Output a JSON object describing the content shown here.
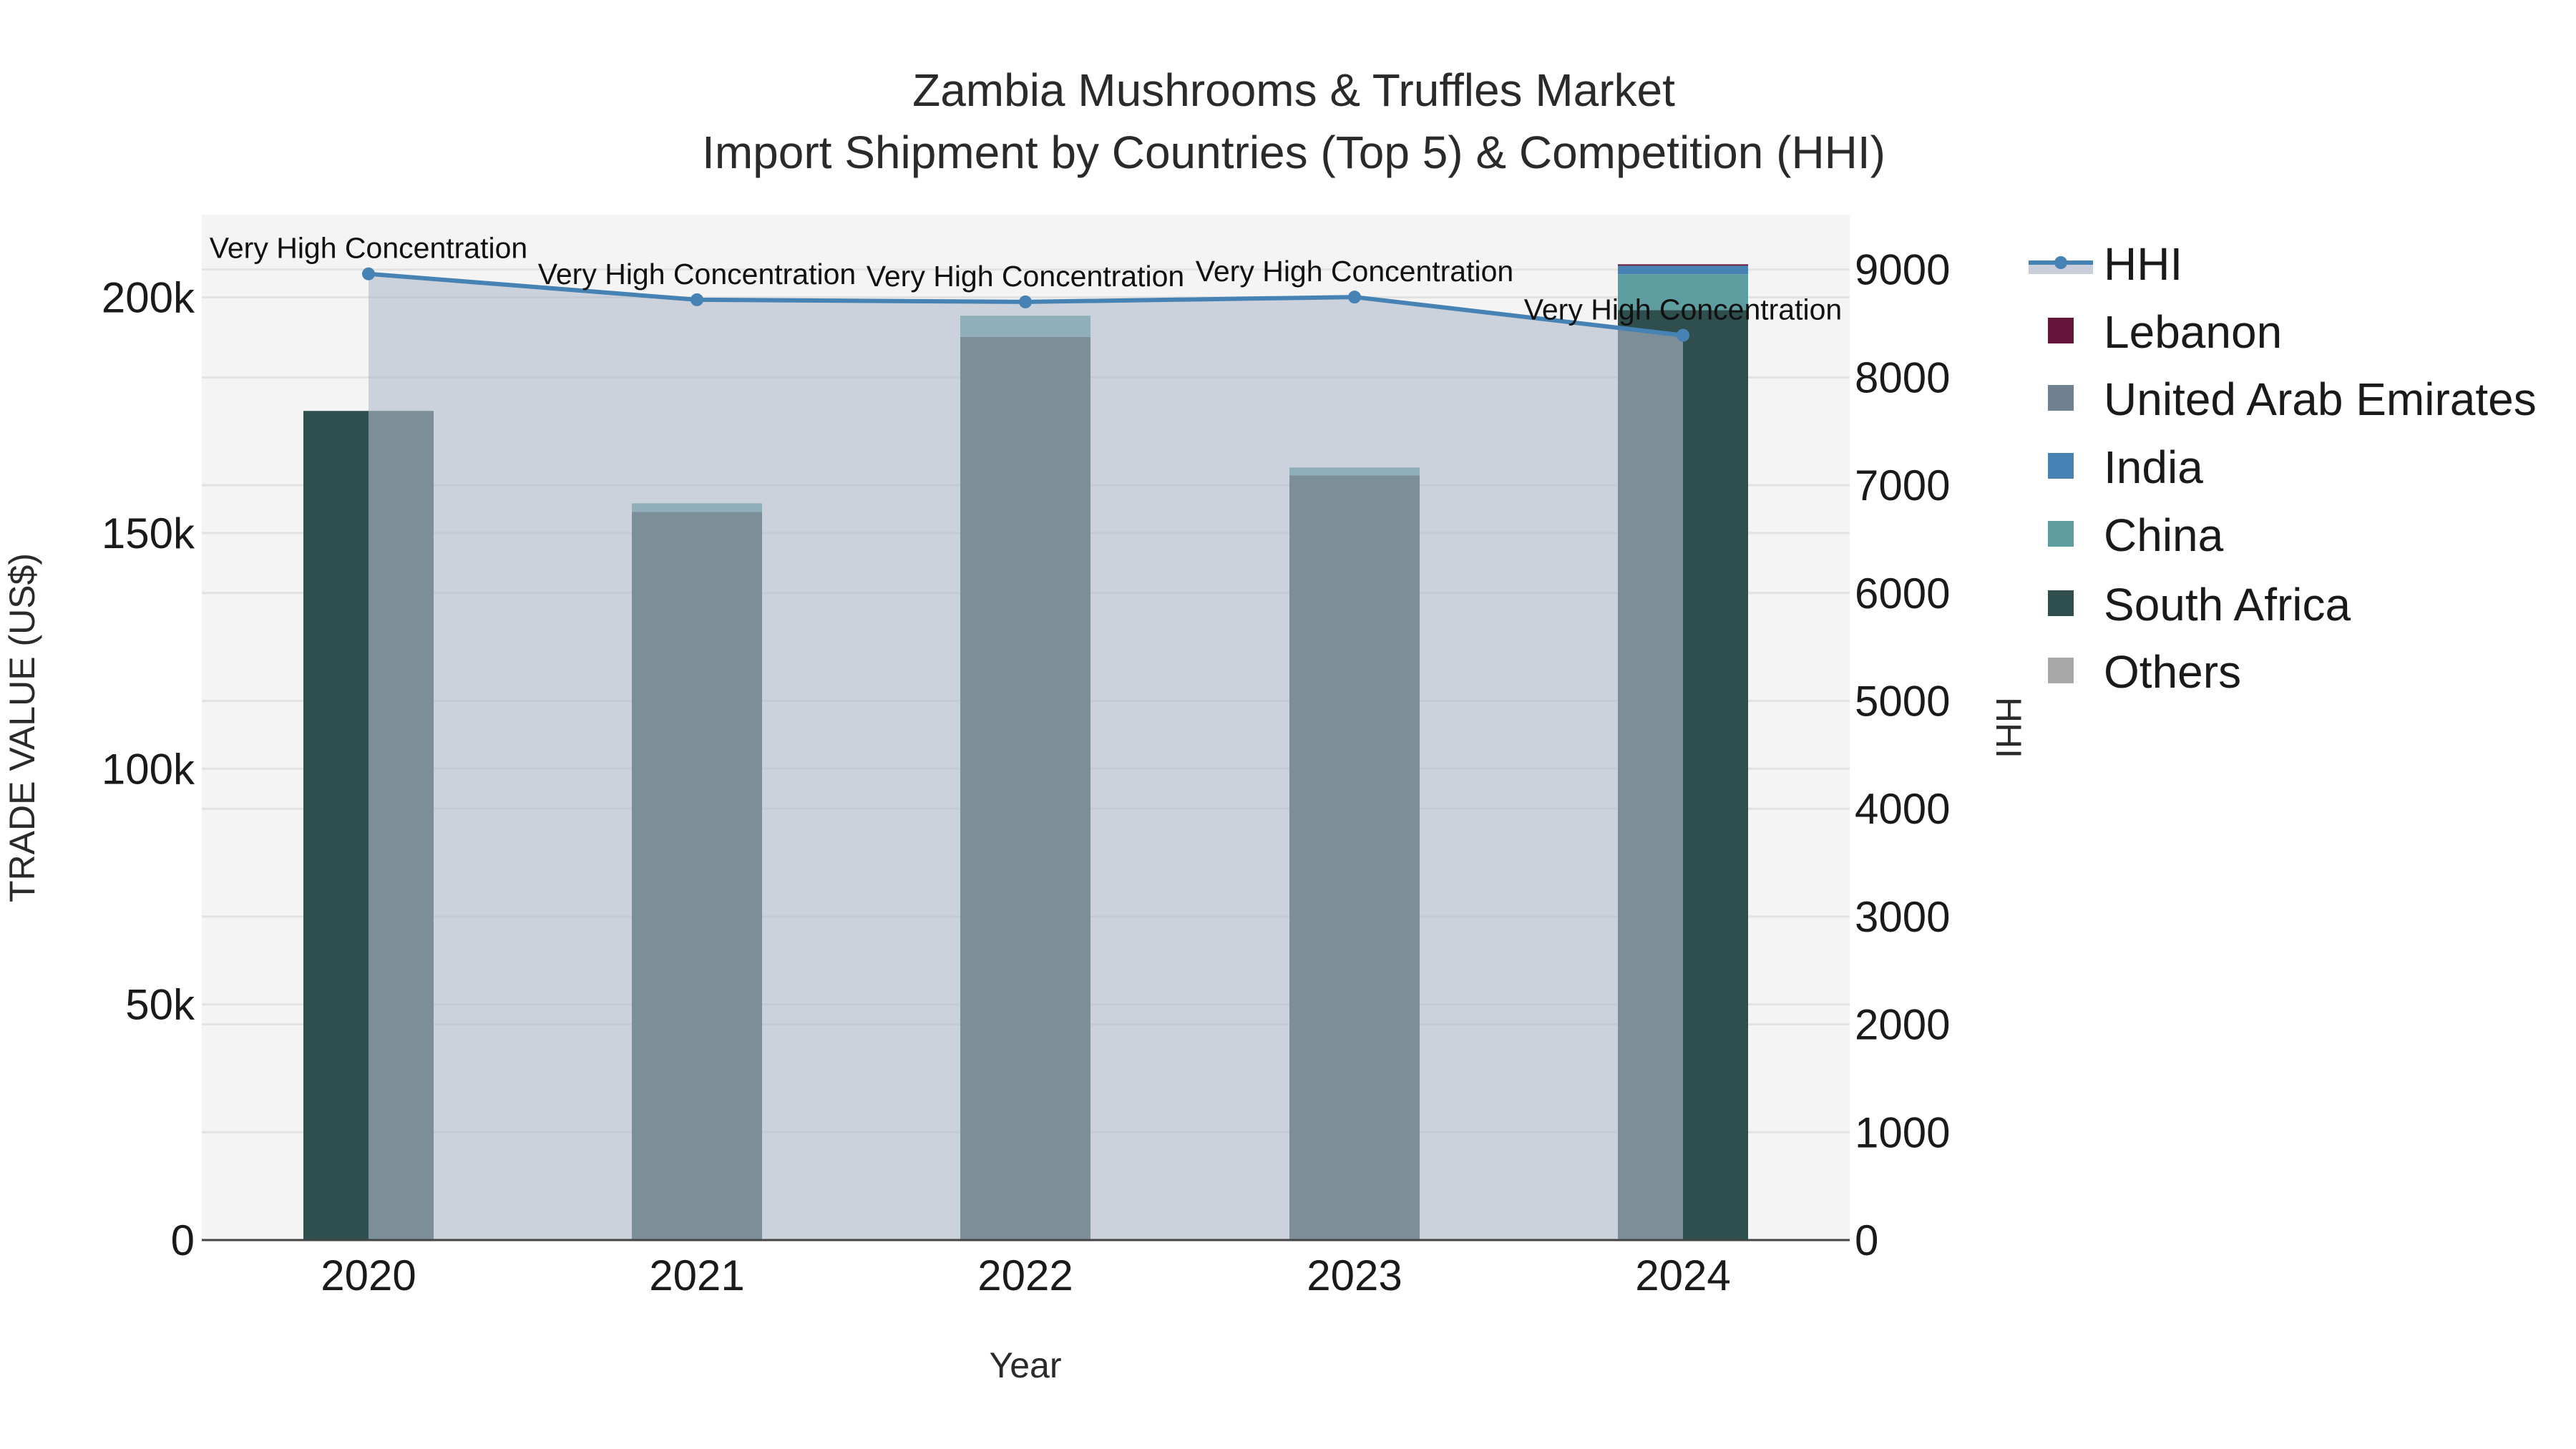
{
  "title": {
    "line1": "Zambia Mushrooms & Truffles Market",
    "line2": "Import Shipment by Countries (Top 5) & Competition (HHI)"
  },
  "axes": {
    "x_title": "Year",
    "y_left_title": "TRADE VALUE (US$)",
    "y_right_title": "HHI",
    "x_ticks": [
      "2020",
      "2021",
      "2022",
      "2023",
      "2024"
    ],
    "y_left_ticks": [
      "0",
      "50k",
      "100k",
      "150k",
      "200k"
    ],
    "y_right_ticks": [
      "0",
      "1000",
      "2000",
      "3000",
      "4000",
      "5000",
      "6000",
      "7000",
      "8000",
      "9000"
    ]
  },
  "legend": {
    "items": [
      {
        "label": "HHI",
        "color": "#4682b4",
        "kind": "line"
      },
      {
        "label": "Lebanon",
        "color": "#641539",
        "kind": "box"
      },
      {
        "label": "United Arab Emirates",
        "color": "#708090",
        "kind": "box"
      },
      {
        "label": "India",
        "color": "#4682b4",
        "kind": "box"
      },
      {
        "label": "China",
        "color": "#5f9ea0",
        "kind": "box"
      },
      {
        "label": "South Africa",
        "color": "#2f4f4f",
        "kind": "box"
      },
      {
        "label": "Others",
        "color": "#a9a9a9",
        "kind": "box"
      }
    ]
  },
  "annotations": [
    "Very High Concentration",
    "Very High Concentration",
    "Very High Concentration",
    "Very High Concentration",
    "Very High Concentration"
  ],
  "colors": {
    "plot_bg": "#f4f4f4",
    "hhi_line": "#4682b4",
    "hhi_fill": "rgba(176,186,204,0.6)"
  },
  "chart_data": {
    "type": "bar",
    "title": "Zambia Mushrooms & Truffles Market — Import Shipment by Countries (Top 5) & Competition (HHI)",
    "xlabel": "Year",
    "ylabel": "TRADE VALUE (US$)",
    "y2label": "HHI",
    "categories": [
      "2020",
      "2021",
      "2022",
      "2023",
      "2024"
    ],
    "stacked": true,
    "series": [
      {
        "name": "South Africa",
        "color": "#2f4f4f",
        "values": [
          175900,
          154500,
          191600,
          162200,
          197300
        ]
      },
      {
        "name": "China",
        "color": "#5f9ea0",
        "values": [
          0,
          1800,
          4500,
          1700,
          7600
        ]
      },
      {
        "name": "India",
        "color": "#4682b4",
        "values": [
          0,
          0,
          0,
          0,
          1800
        ]
      },
      {
        "name": "United Arab Emirates",
        "color": "#708090",
        "values": [
          0,
          0,
          0,
          0,
          0
        ]
      },
      {
        "name": "Lebanon",
        "color": "#641539",
        "values": [
          0,
          0,
          0,
          0,
          300
        ]
      },
      {
        "name": "Others",
        "color": "#a9a9a9",
        "values": [
          0,
          0,
          0,
          0,
          0
        ]
      }
    ],
    "line_series": {
      "name": "HHI",
      "axis": "right",
      "type": "line+area",
      "values": [
        8960,
        8720,
        8700,
        8745,
        8390
      ],
      "labels": [
        "Very High Concentration",
        "Very High Concentration",
        "Very High Concentration",
        "Very High Concentration",
        "Very High Concentration"
      ]
    },
    "ylim": [
      0,
      217000
    ],
    "y2lim": [
      0,
      9500
    ],
    "grid": true,
    "legend_position": "right"
  }
}
